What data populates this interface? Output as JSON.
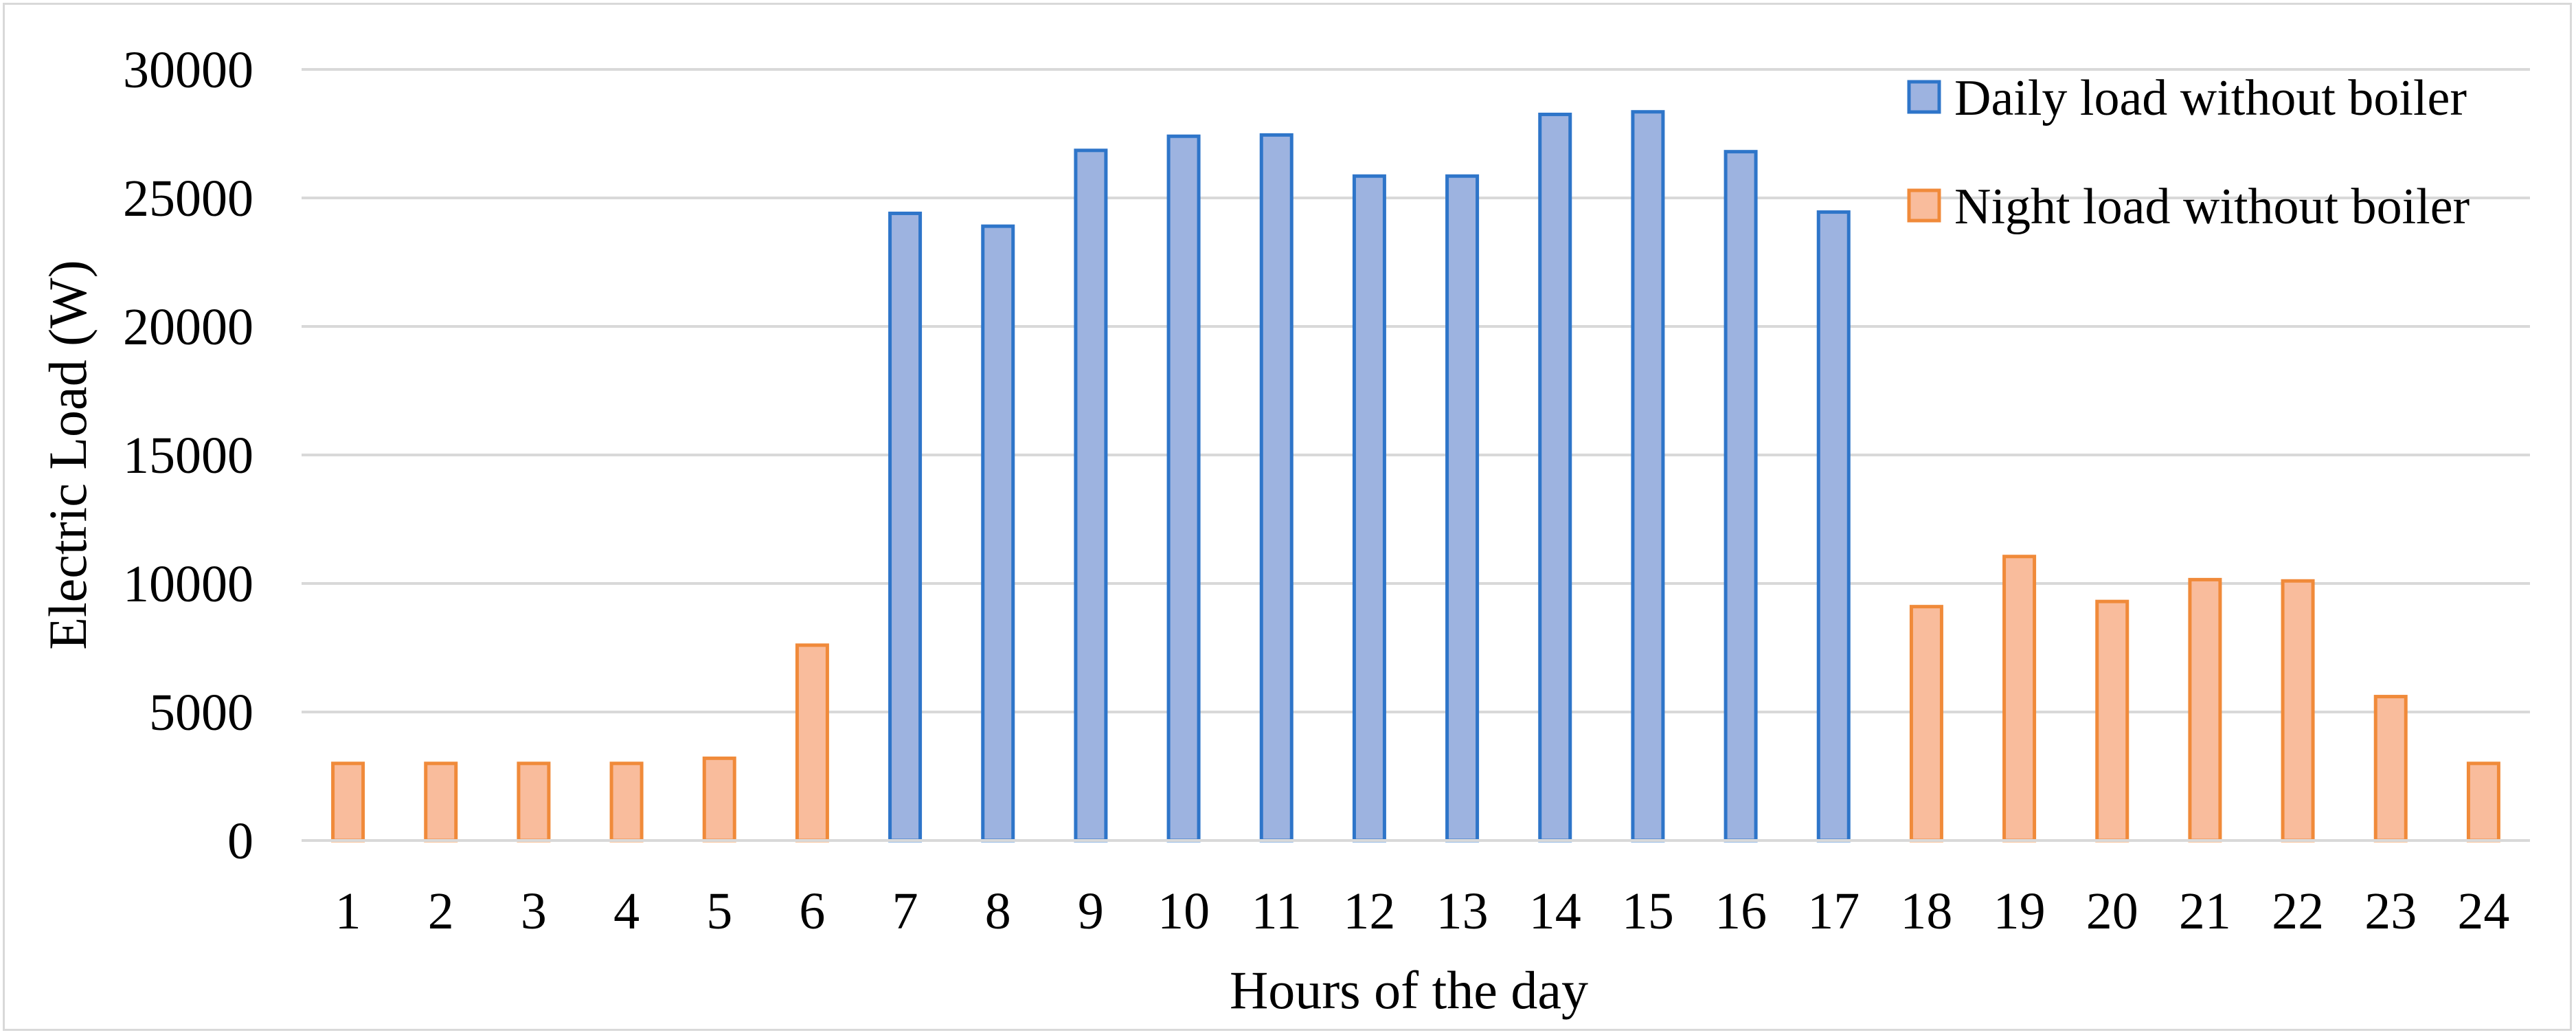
{
  "chart_data": {
    "type": "bar",
    "title": "",
    "xlabel": "Hours of the day",
    "ylabel": "Electric Load (W)",
    "ylim": [
      0,
      30000
    ],
    "yticks": [
      "0",
      "5000",
      "10000",
      "15000",
      "20000",
      "25000",
      "30000"
    ],
    "categories": [
      "1",
      "2",
      "3",
      "4",
      "5",
      "6",
      "7",
      "8",
      "9",
      "10",
      "11",
      "12",
      "13",
      "14",
      "15",
      "16",
      "17",
      "18",
      "19",
      "20",
      "21",
      "22",
      "23",
      "24"
    ],
    "grid": "horizontal",
    "legend_position": "top-right",
    "series": [
      {
        "name": "Daily load without boiler",
        "fill": "#9db3e0",
        "stroke": "#2e75c9",
        "values": [
          null,
          null,
          null,
          null,
          null,
          null,
          24400,
          23900,
          26850,
          27400,
          27450,
          25850,
          25850,
          28250,
          28350,
          26800,
          24450,
          null,
          null,
          null,
          null,
          null,
          null,
          null
        ]
      },
      {
        "name": "Night load without boiler",
        "fill": "#f9bc9c",
        "stroke": "#f08a3a",
        "values": [
          3000,
          3000,
          3000,
          3000,
          3200,
          7600,
          null,
          null,
          null,
          null,
          null,
          null,
          null,
          null,
          null,
          null,
          null,
          9100,
          11050,
          9300,
          10150,
          10100,
          5600,
          3000
        ]
      }
    ]
  }
}
